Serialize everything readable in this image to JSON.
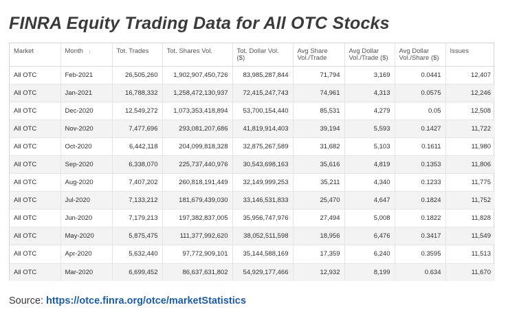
{
  "title": "FINRA Equity Trading Data for All OTC Stocks",
  "table": {
    "columns": [
      "Market",
      "Month",
      "Tot. Trades",
      "Tot. Shares Vol.",
      "Tot. Dollar Vol. ($)",
      "Avg Share Vol./Trade",
      "Avg Dollar Vol./Trade ($)",
      "Avg Dollar Vol./Share ($)",
      "Issues"
    ],
    "rows": [
      [
        "All OTC",
        "Feb-2021",
        "26,505,260",
        "1,902,907,450,726",
        "83,985,287,844",
        "71,794",
        "3,169",
        "0.0441",
        "12,407"
      ],
      [
        "All OTC",
        "Jan-2021",
        "16,788,332",
        "1,258,472,130,937",
        "72,415,247,743",
        "74,961",
        "4,313",
        "0.0575",
        "12,246"
      ],
      [
        "All OTC",
        "Dec-2020",
        "12,549,272",
        "1,073,353,418,894",
        "53,700,154,440",
        "85,531",
        "4,279",
        "0.05",
        "12,508"
      ],
      [
        "All OTC",
        "Nov-2020",
        "7,477,696",
        "293,081,207,686",
        "41,819,914,403",
        "39,194",
        "5,593",
        "0.1427",
        "11,722"
      ],
      [
        "All OTC",
        "Oct-2020",
        "6,442,118",
        "204,099,818,328",
        "32,875,267,589",
        "31,682",
        "5,103",
        "0.1611",
        "11,980"
      ],
      [
        "All OTC",
        "Sep-2020",
        "6,338,070",
        "225,737,440,976",
        "30,543,698,163",
        "35,616",
        "4,819",
        "0.1353",
        "11,806"
      ],
      [
        "All OTC",
        "Aug-2020",
        "7,407,202",
        "260,818,191,449",
        "32,149,999,253",
        "35,211",
        "4,340",
        "0.1233",
        "11,775"
      ],
      [
        "All OTC",
        "Jul-2020",
        "7,133,212",
        "181,679,439,030",
        "33,146,531,833",
        "25,470",
        "4,647",
        "0.1824",
        "11,752"
      ],
      [
        "All OTC",
        "Jun-2020",
        "7,179,213",
        "197,382,837,005",
        "35,956,747,976",
        "27,494",
        "5,008",
        "0.1822",
        "11,828"
      ],
      [
        "All OTC",
        "May-2020",
        "5,875,475",
        "111,377,992,620",
        "38,052,511,598",
        "18,956",
        "6,476",
        "0.3417",
        "11,549"
      ],
      [
        "All OTC",
        "Apr-2020",
        "5,632,440",
        "97,772,909,101",
        "35,144,588,169",
        "17,359",
        "6,240",
        "0.3595",
        "11,513"
      ],
      [
        "All OTC",
        "Mar-2020",
        "6,699,452",
        "86,637,631,802",
        "54,929,177,466",
        "12,932",
        "8,199",
        "0.634",
        "11,670"
      ]
    ]
  },
  "source": {
    "label": "Source:",
    "url": "https://otce.finra.org/otce/marketStatistics"
  },
  "icons": {
    "sort_indicator": "sort-down-icon"
  },
  "colors": {
    "title": "#3a3a3a",
    "link": "#1a5da8",
    "sort_icon": "#5a8fd6",
    "row_alt": "#f3f3f3",
    "border": "#d3d3d3"
  }
}
